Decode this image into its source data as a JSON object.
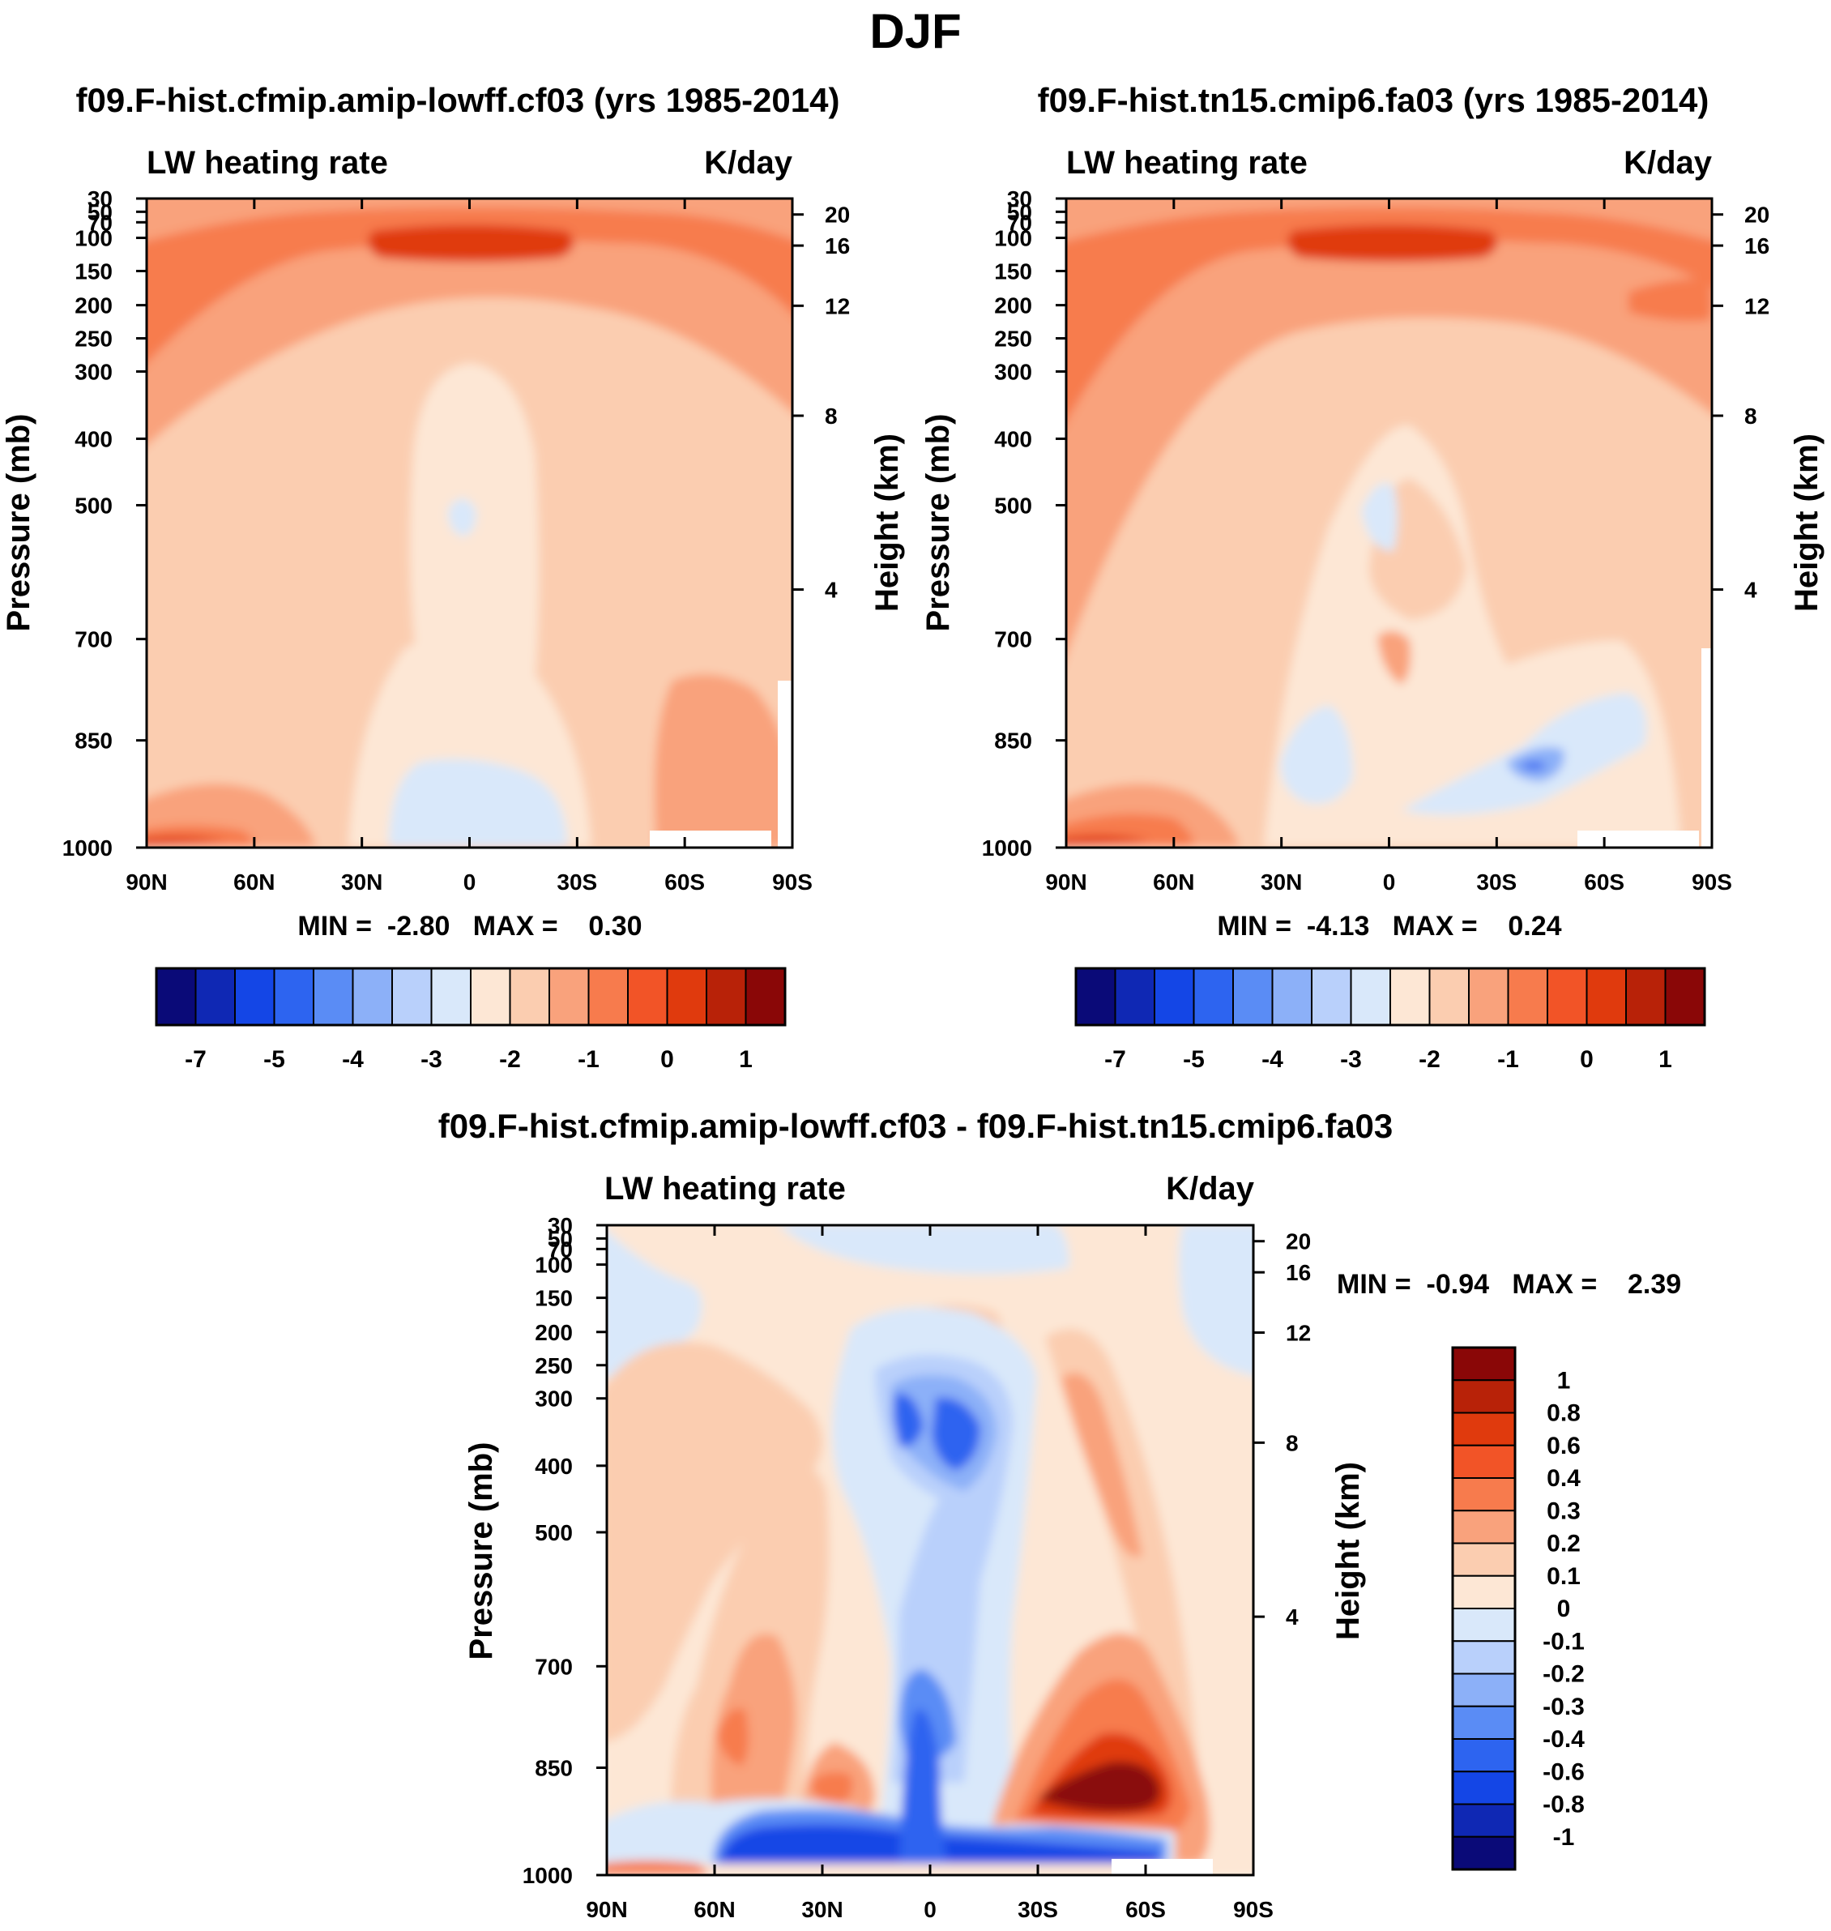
{
  "page_title": "DJF",
  "chart_data": [
    {
      "type": "contour",
      "title": "f09.F-hist.cfmip.amip-lowff.cf03 (yrs 1985-2014)",
      "left_label": "LW heating rate",
      "right_label": "K/day",
      "ylabel": "Pressure (mb)",
      "ylabel_right": "Height (km)",
      "x_ticks": [
        "90N",
        "60N",
        "30N",
        "0",
        "30S",
        "60S",
        "90S"
      ],
      "y_ticks": [
        "30",
        "50",
        "70",
        "100",
        "150",
        "200",
        "250",
        "300",
        "400",
        "500",
        "700",
        "850",
        "1000"
      ],
      "y_ticks_right": [
        "20",
        "16",
        "12",
        "8",
        "4"
      ],
      "stats": "MIN =  -2.80   MAX =    0.30",
      "min": -2.8,
      "max": 0.3,
      "colorbar_labels": [
        "-7",
        "-5",
        "-4",
        "-3",
        "-2",
        "-1",
        "0",
        "1"
      ]
    },
    {
      "type": "contour",
      "title": "f09.F-hist.tn15.cmip6.fa03 (yrs 1985-2014)",
      "left_label": "LW heating rate",
      "right_label": "K/day",
      "ylabel": "Pressure (mb)",
      "ylabel_right": "Height (km)",
      "x_ticks": [
        "90N",
        "60N",
        "30N",
        "0",
        "30S",
        "60S",
        "90S"
      ],
      "y_ticks": [
        "30",
        "50",
        "70",
        "100",
        "150",
        "200",
        "250",
        "300",
        "400",
        "500",
        "700",
        "850",
        "1000"
      ],
      "y_ticks_right": [
        "20",
        "16",
        "12",
        "8",
        "4"
      ],
      "stats": "MIN =  -4.13   MAX =    0.24",
      "min": -4.13,
      "max": 0.24,
      "colorbar_labels": [
        "-7",
        "-5",
        "-4",
        "-3",
        "-2",
        "-1",
        "0",
        "1"
      ]
    },
    {
      "type": "contour",
      "title": "f09.F-hist.cfmip.amip-lowff.cf03 - f09.F-hist.tn15.cmip6.fa03",
      "left_label": "LW heating rate",
      "right_label": "K/day",
      "ylabel": "Pressure (mb)",
      "ylabel_right": "Height (km)",
      "x_ticks": [
        "90N",
        "60N",
        "30N",
        "0",
        "30S",
        "60S",
        "90S"
      ],
      "y_ticks": [
        "30",
        "50",
        "70",
        "100",
        "150",
        "200",
        "250",
        "300",
        "400",
        "500",
        "700",
        "850",
        "1000"
      ],
      "y_ticks_right": [
        "20",
        "16",
        "12",
        "8",
        "4"
      ],
      "stats": "MIN =  -0.94   MAX =    2.39",
      "min": -0.94,
      "max": 2.39,
      "colorbar_labels": [
        "1",
        "0.8",
        "0.6",
        "0.4",
        "0.3",
        "0.2",
        "0.1",
        "0",
        "-0.1",
        "-0.2",
        "-0.3",
        "-0.4",
        "-0.6",
        "-0.8",
        "-1"
      ]
    }
  ],
  "colors": {
    "main_palette": [
      "#0a0a78",
      "#0f28b4",
      "#1446e6",
      "#2d64f0",
      "#5a8cf5",
      "#8cb0f8",
      "#b9d0fb",
      "#d9e8fa",
      "#fde7d5",
      "#fbcdb0",
      "#f9a27c",
      "#f77b4d",
      "#f25427",
      "#e03a0d",
      "#b82208",
      "#8a0707"
    ],
    "diff_palette": [
      "#8a0707",
      "#b82208",
      "#e03a0d",
      "#f25427",
      "#f77b4d",
      "#f9a27c",
      "#fbcdb0",
      "#fde7d5",
      "#d9e8fa",
      "#b9d0fb",
      "#8cb0f8",
      "#5a8cf5",
      "#2d64f0",
      "#1446e6",
      "#0f28b4",
      "#0a0a78"
    ]
  }
}
